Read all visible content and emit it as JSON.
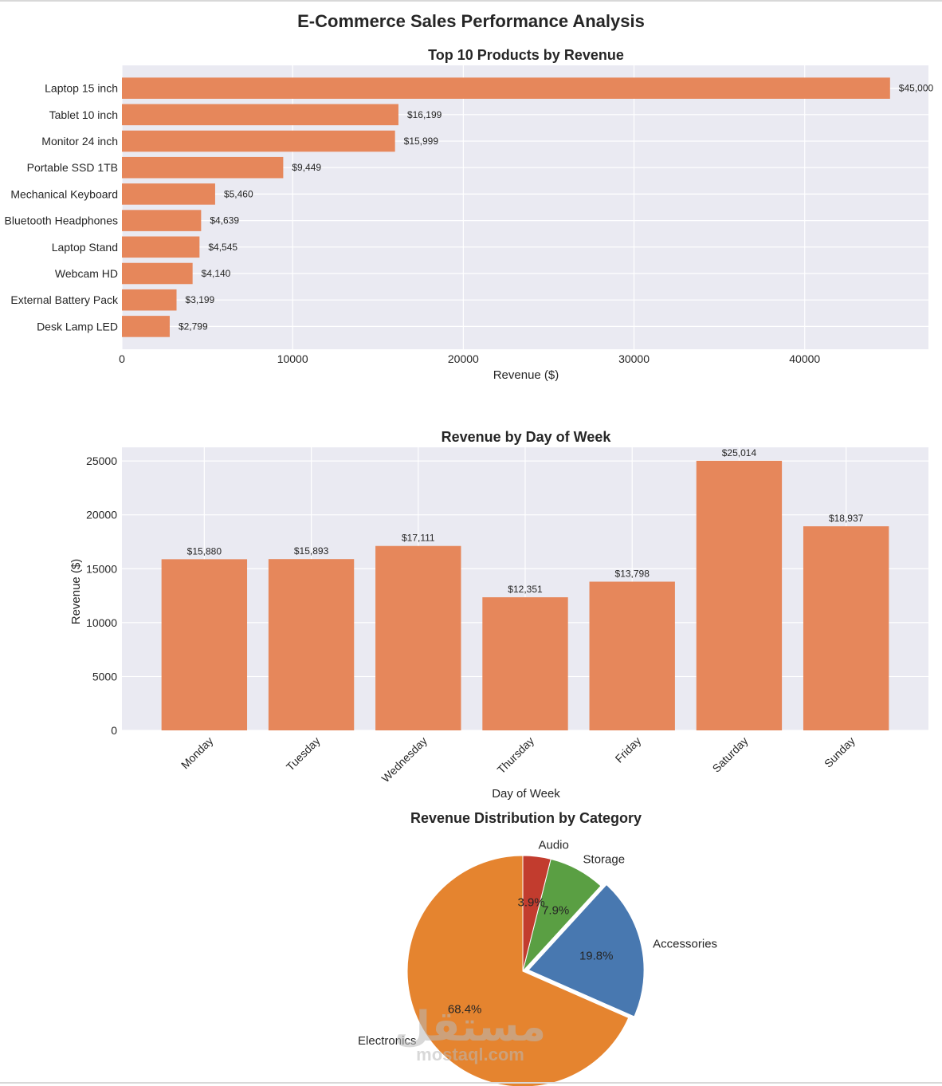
{
  "figure": {
    "title": "E-Commerce Sales Performance Analysis",
    "watermark": "مستقل",
    "watermark_domain": "mostaql.com"
  },
  "colors": {
    "bar": "#e6875b",
    "panel_bg": "#eaeaf2",
    "grid": "#ffffff",
    "pie": [
      "#e5842f",
      "#4878b0",
      "#5a9f43",
      "#c23c2e"
    ]
  },
  "chart_data": [
    {
      "type": "bar",
      "orientation": "horizontal",
      "title": "Top 10 Products by Revenue",
      "xlabel": "Revenue ($)",
      "ylabel": "",
      "xlim": [
        0,
        47250
      ],
      "xticks": [
        0,
        10000,
        20000,
        30000,
        40000
      ],
      "categories": [
        "Laptop 15 inch",
        "Tablet 10 inch",
        "Monitor 24 inch",
        "Portable SSD 1TB",
        "Mechanical Keyboard",
        "Bluetooth Headphones",
        "Laptop Stand",
        "Webcam HD",
        "External Battery Pack",
        "Desk Lamp LED"
      ],
      "values": [
        45000,
        16199,
        15999,
        9449,
        5460,
        4639,
        4545,
        4140,
        3199,
        2799
      ],
      "labels": [
        "$45,000",
        "$16,199",
        "$15,999",
        "$9,449",
        "$5,460",
        "$4,639",
        "$4,545",
        "$4,140",
        "$3,199",
        "$2,799"
      ]
    },
    {
      "type": "bar",
      "orientation": "vertical",
      "title": "Revenue by Day of Week",
      "xlabel": "Day of Week",
      "ylabel": "Revenue ($)",
      "ylim": [
        0,
        26265
      ],
      "yticks": [
        0,
        5000,
        10000,
        15000,
        20000,
        25000
      ],
      "categories": [
        "Monday",
        "Tuesday",
        "Wednesday",
        "Thursday",
        "Friday",
        "Saturday",
        "Sunday"
      ],
      "values": [
        15880,
        15893,
        17111,
        12351,
        13798,
        25014,
        18937
      ],
      "labels": [
        "$15,880",
        "$15,893",
        "$17,111",
        "$12,351",
        "$13,798",
        "$25,014",
        "$18,937"
      ]
    },
    {
      "type": "pie",
      "title": "Revenue Distribution by Category",
      "categories": [
        "Electronics",
        "Accessories",
        "Storage",
        "Audio"
      ],
      "values": [
        68.4,
        19.8,
        7.9,
        3.9
      ],
      "labels": [
        "68.4%",
        "19.8%",
        "7.9%",
        "3.9%"
      ],
      "start_angle": 90,
      "counterclock": true,
      "explode": [
        0,
        0.05,
        0,
        0
      ]
    }
  ]
}
